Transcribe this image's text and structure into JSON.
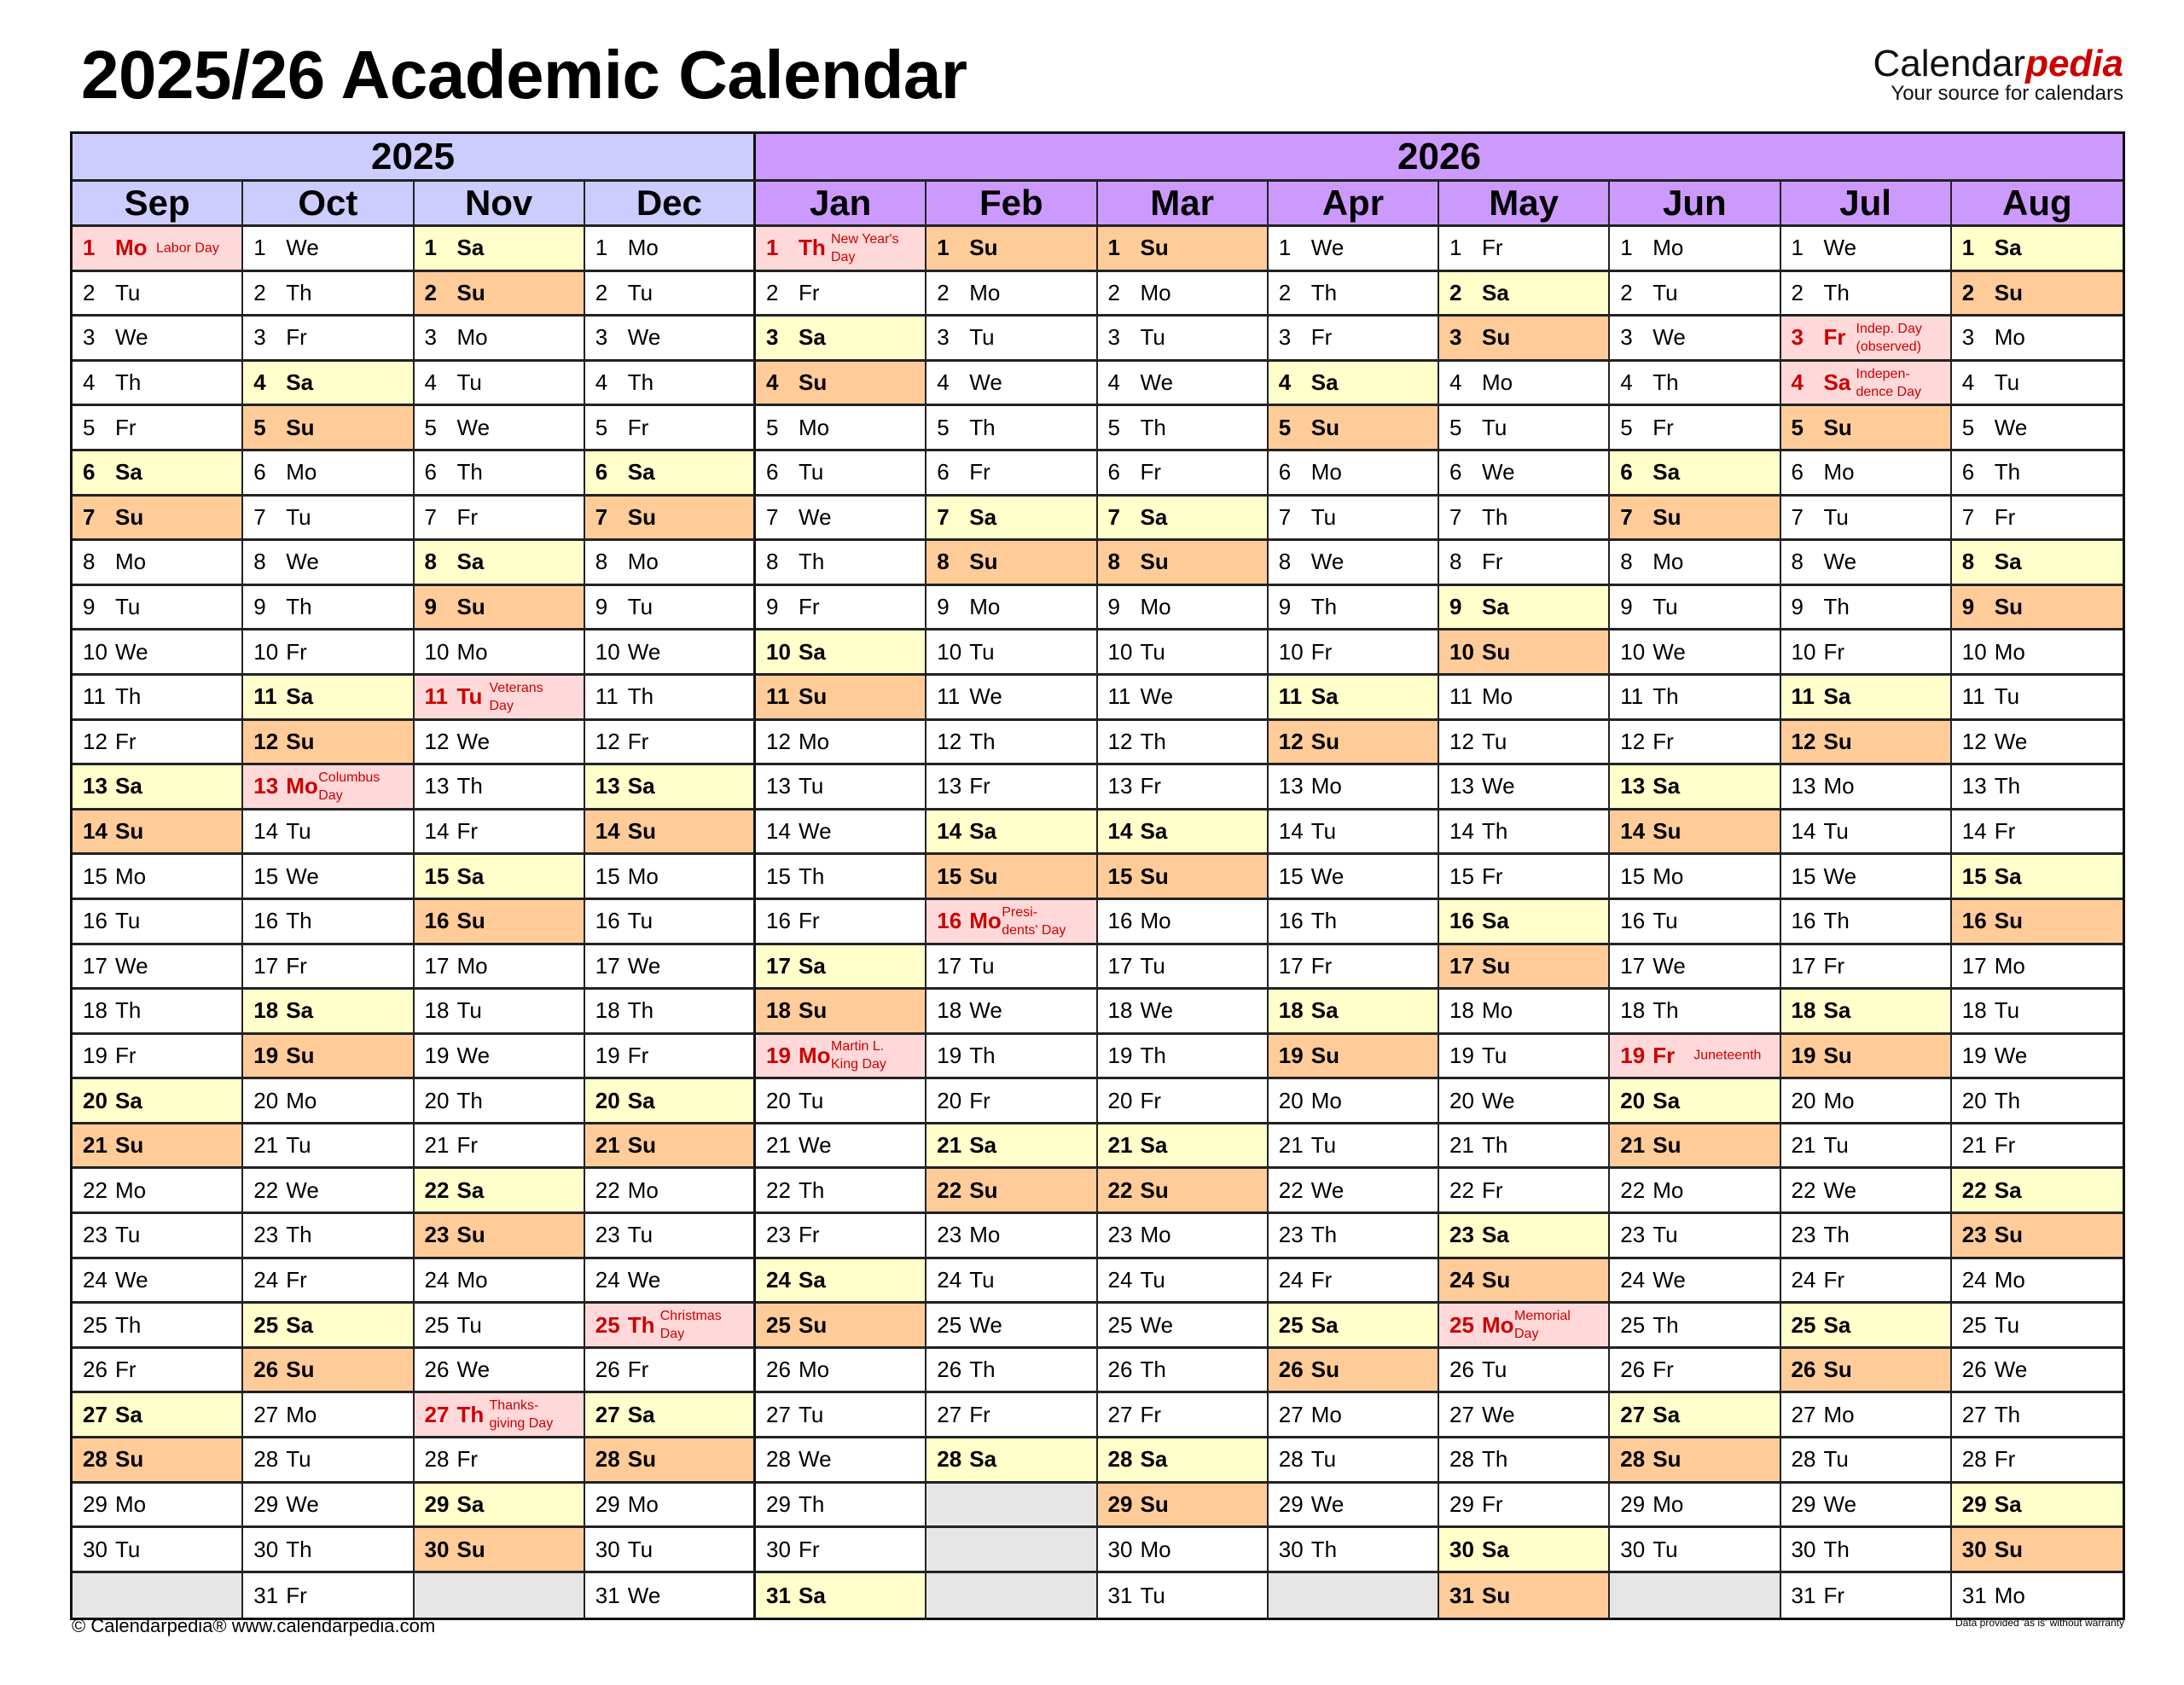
{
  "title": "2025/26 Academic Calendar",
  "brand": {
    "name_part1": "Calendar",
    "name_part2": "pedia",
    "tagline": "Your source for calendars"
  },
  "years": [
    "2025",
    "2026"
  ],
  "colors": {
    "year_2025": "#ccccff",
    "year_2026": "#cc99ff",
    "saturday": "#ffffcc",
    "sunday": "#ffcc99",
    "holiday": "#ffd9d9",
    "holiday_text": "#cc0000",
    "empty": "#e5e5e5"
  },
  "months": [
    {
      "name": "Sep",
      "year": "2025",
      "days": [
        "Mo",
        "Tu",
        "We",
        "Th",
        "Fr",
        "Sa",
        "Su",
        "Mo",
        "Tu",
        "We",
        "Th",
        "Fr",
        "Sa",
        "Su",
        "Mo",
        "Tu",
        "We",
        "Th",
        "Fr",
        "Sa",
        "Su",
        "Mo",
        "Tu",
        "We",
        "Th",
        "Fr",
        "Sa",
        "Su",
        "Mo",
        "Tu"
      ],
      "holidays": {
        "1": "Labor Day"
      }
    },
    {
      "name": "Oct",
      "year": "2025",
      "days": [
        "We",
        "Th",
        "Fr",
        "Sa",
        "Su",
        "Mo",
        "Tu",
        "We",
        "Th",
        "Fr",
        "Sa",
        "Su",
        "Mo",
        "Tu",
        "We",
        "Th",
        "Fr",
        "Sa",
        "Su",
        "Mo",
        "Tu",
        "We",
        "Th",
        "Fr",
        "Sa",
        "Su",
        "Mo",
        "Tu",
        "We",
        "Th",
        "Fr"
      ],
      "holidays": {
        "13": "Columbus\nDay"
      }
    },
    {
      "name": "Nov",
      "year": "2025",
      "days": [
        "Sa",
        "Su",
        "Mo",
        "Tu",
        "We",
        "Th",
        "Fr",
        "Sa",
        "Su",
        "Mo",
        "Tu",
        "We",
        "Th",
        "Fr",
        "Sa",
        "Su",
        "Mo",
        "Tu",
        "We",
        "Th",
        "Fr",
        "Sa",
        "Su",
        "Mo",
        "Tu",
        "We",
        "Th",
        "Fr",
        "Sa",
        "Su"
      ],
      "holidays": {
        "11": "Veterans\nDay",
        "27": "Thanks-\ngiving Day"
      }
    },
    {
      "name": "Dec",
      "year": "2025",
      "days": [
        "Mo",
        "Tu",
        "We",
        "Th",
        "Fr",
        "Sa",
        "Su",
        "Mo",
        "Tu",
        "We",
        "Th",
        "Fr",
        "Sa",
        "Su",
        "Mo",
        "Tu",
        "We",
        "Th",
        "Fr",
        "Sa",
        "Su",
        "Mo",
        "Tu",
        "We",
        "Th",
        "Fr",
        "Sa",
        "Su",
        "Mo",
        "Tu",
        "We"
      ],
      "holidays": {
        "25": "Christmas\nDay"
      }
    },
    {
      "name": "Jan",
      "year": "2026",
      "days": [
        "Th",
        "Fr",
        "Sa",
        "Su",
        "Mo",
        "Tu",
        "We",
        "Th",
        "Fr",
        "Sa",
        "Su",
        "Mo",
        "Tu",
        "We",
        "Th",
        "Fr",
        "Sa",
        "Su",
        "Mo",
        "Tu",
        "We",
        "Th",
        "Fr",
        "Sa",
        "Su",
        "Mo",
        "Tu",
        "We",
        "Th",
        "Fr",
        "Sa"
      ],
      "holidays": {
        "1": "New Year's\nDay",
        "19": "Martin L.\nKing Day"
      }
    },
    {
      "name": "Feb",
      "year": "2026",
      "days": [
        "Su",
        "Mo",
        "Tu",
        "We",
        "Th",
        "Fr",
        "Sa",
        "Su",
        "Mo",
        "Tu",
        "We",
        "Th",
        "Fr",
        "Sa",
        "Su",
        "Mo",
        "Tu",
        "We",
        "Th",
        "Fr",
        "Sa",
        "Su",
        "Mo",
        "Tu",
        "We",
        "Th",
        "Fr",
        "Sa"
      ],
      "holidays": {
        "16": "Presi-\ndents' Day"
      }
    },
    {
      "name": "Mar",
      "year": "2026",
      "days": [
        "Su",
        "Mo",
        "Tu",
        "We",
        "Th",
        "Fr",
        "Sa",
        "Su",
        "Mo",
        "Tu",
        "We",
        "Th",
        "Fr",
        "Sa",
        "Su",
        "Mo",
        "Tu",
        "We",
        "Th",
        "Fr",
        "Sa",
        "Su",
        "Mo",
        "Tu",
        "We",
        "Th",
        "Fr",
        "Sa",
        "Su",
        "Mo",
        "Tu"
      ],
      "holidays": {}
    },
    {
      "name": "Apr",
      "year": "2026",
      "days": [
        "We",
        "Th",
        "Fr",
        "Sa",
        "Su",
        "Mo",
        "Tu",
        "We",
        "Th",
        "Fr",
        "Sa",
        "Su",
        "Mo",
        "Tu",
        "We",
        "Th",
        "Fr",
        "Sa",
        "Su",
        "Mo",
        "Tu",
        "We",
        "Th",
        "Fr",
        "Sa",
        "Su",
        "Mo",
        "Tu",
        "We",
        "Th"
      ],
      "holidays": {}
    },
    {
      "name": "May",
      "year": "2026",
      "days": [
        "Fr",
        "Sa",
        "Su",
        "Mo",
        "Tu",
        "We",
        "Th",
        "Fr",
        "Sa",
        "Su",
        "Mo",
        "Tu",
        "We",
        "Th",
        "Fr",
        "Sa",
        "Su",
        "Mo",
        "Tu",
        "We",
        "Th",
        "Fr",
        "Sa",
        "Su",
        "Mo",
        "Tu",
        "We",
        "Th",
        "Fr",
        "Sa",
        "Su"
      ],
      "holidays": {
        "25": "Memorial\nDay"
      }
    },
    {
      "name": "Jun",
      "year": "2026",
      "days": [
        "Mo",
        "Tu",
        "We",
        "Th",
        "Fr",
        "Sa",
        "Su",
        "Mo",
        "Tu",
        "We",
        "Th",
        "Fr",
        "Sa",
        "Su",
        "Mo",
        "Tu",
        "We",
        "Th",
        "Fr",
        "Sa",
        "Su",
        "Mo",
        "Tu",
        "We",
        "Th",
        "Fr",
        "Sa",
        "Su",
        "Mo",
        "Tu"
      ],
      "holidays": {
        "19": "Juneteenth"
      }
    },
    {
      "name": "Jul",
      "year": "2026",
      "days": [
        "We",
        "Th",
        "Fr",
        "Sa",
        "Su",
        "Mo",
        "Tu",
        "We",
        "Th",
        "Fr",
        "Sa",
        "Su",
        "Mo",
        "Tu",
        "We",
        "Th",
        "Fr",
        "Sa",
        "Su",
        "Mo",
        "Tu",
        "We",
        "Th",
        "Fr",
        "Sa",
        "Su",
        "Mo",
        "Tu",
        "We",
        "Th",
        "Fr"
      ],
      "holidays": {
        "3": "Indep. Day\n(observed)",
        "4": "Indepen-\ndence Day"
      }
    },
    {
      "name": "Aug",
      "year": "2026",
      "days": [
        "Sa",
        "Su",
        "Mo",
        "Tu",
        "We",
        "Th",
        "Fr",
        "Sa",
        "Su",
        "Mo",
        "Tu",
        "We",
        "Th",
        "Fr",
        "Sa",
        "Su",
        "Mo",
        "Tu",
        "We",
        "Th",
        "Fr",
        "Sa",
        "Su",
        "Mo",
        "Tu",
        "We",
        "Th",
        "Fr",
        "Sa",
        "Su",
        "Mo"
      ],
      "holidays": {}
    }
  ],
  "footer": {
    "copyright": "© Calendarpedia®   www.calendarpedia.com",
    "disclaimer": "Data provided 'as is' without warranty"
  }
}
